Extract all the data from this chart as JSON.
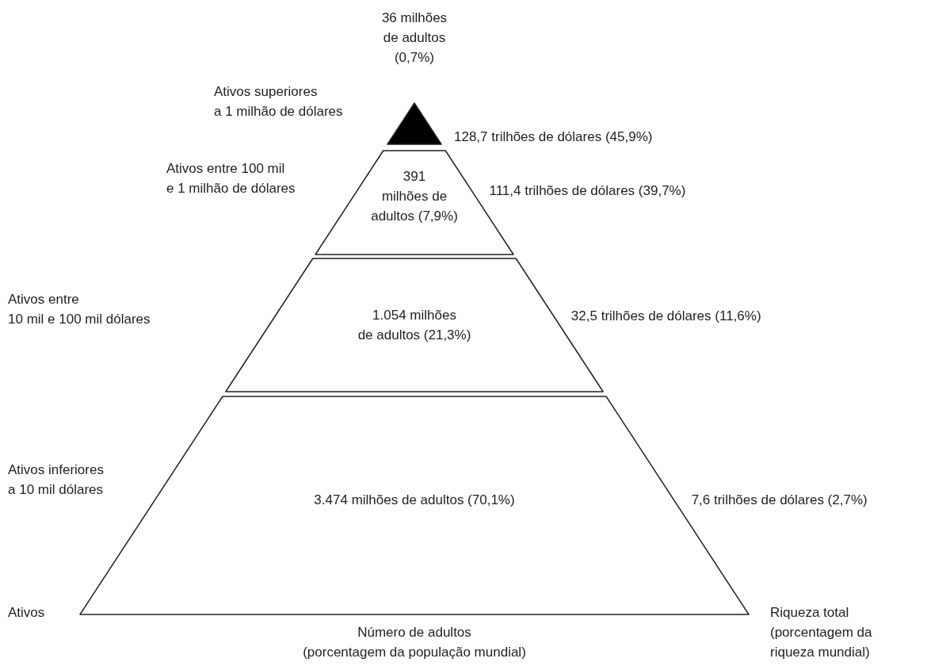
{
  "chart_data": {
    "type": "other",
    "categories": [
      "Ativos superiores\na 1 milhão de dólares",
      "Ativos entre 100 mil\ne 1 milhão de dólares",
      "Ativos entre\n10 mil e 100 mil dólares",
      "Ativos inferiores\na 10 mil dólares"
    ],
    "colors": [
      "#000000",
      "#ffffff",
      "#ffffff",
      "#ffffff"
    ],
    "series": [
      {
        "values": [
          36,
          391,
          1054,
          3474
        ],
        "value_labels": [
          "36 milhões\nde adultos\n(0,7%)",
          "391\nmilhões de\nadultos (7,9%)",
          "1.054 milhões\nde adultos (21,3%)",
          "3.474 milhões de adultos (70,1%)"
        ]
      },
      {
        "values": [
          128.7,
          111.4,
          32.5,
          7.6
        ],
        "value_labels": [
          "128,7 trilhões de dólares (45,9%)",
          "111,4 trilhões de dólares (39,7%)",
          "32,5 trilhões de dólares (11,6%)",
          "7,6 trilhões de dólares (2,7%)"
        ]
      }
    ],
    "xlabel": "Número de adultos\n(porcentagem da população mundial)",
    "ylabel": "Ativos",
    "y2label": "Riqueza total\n(porcentagem da\nriqueza mundial)"
  }
}
